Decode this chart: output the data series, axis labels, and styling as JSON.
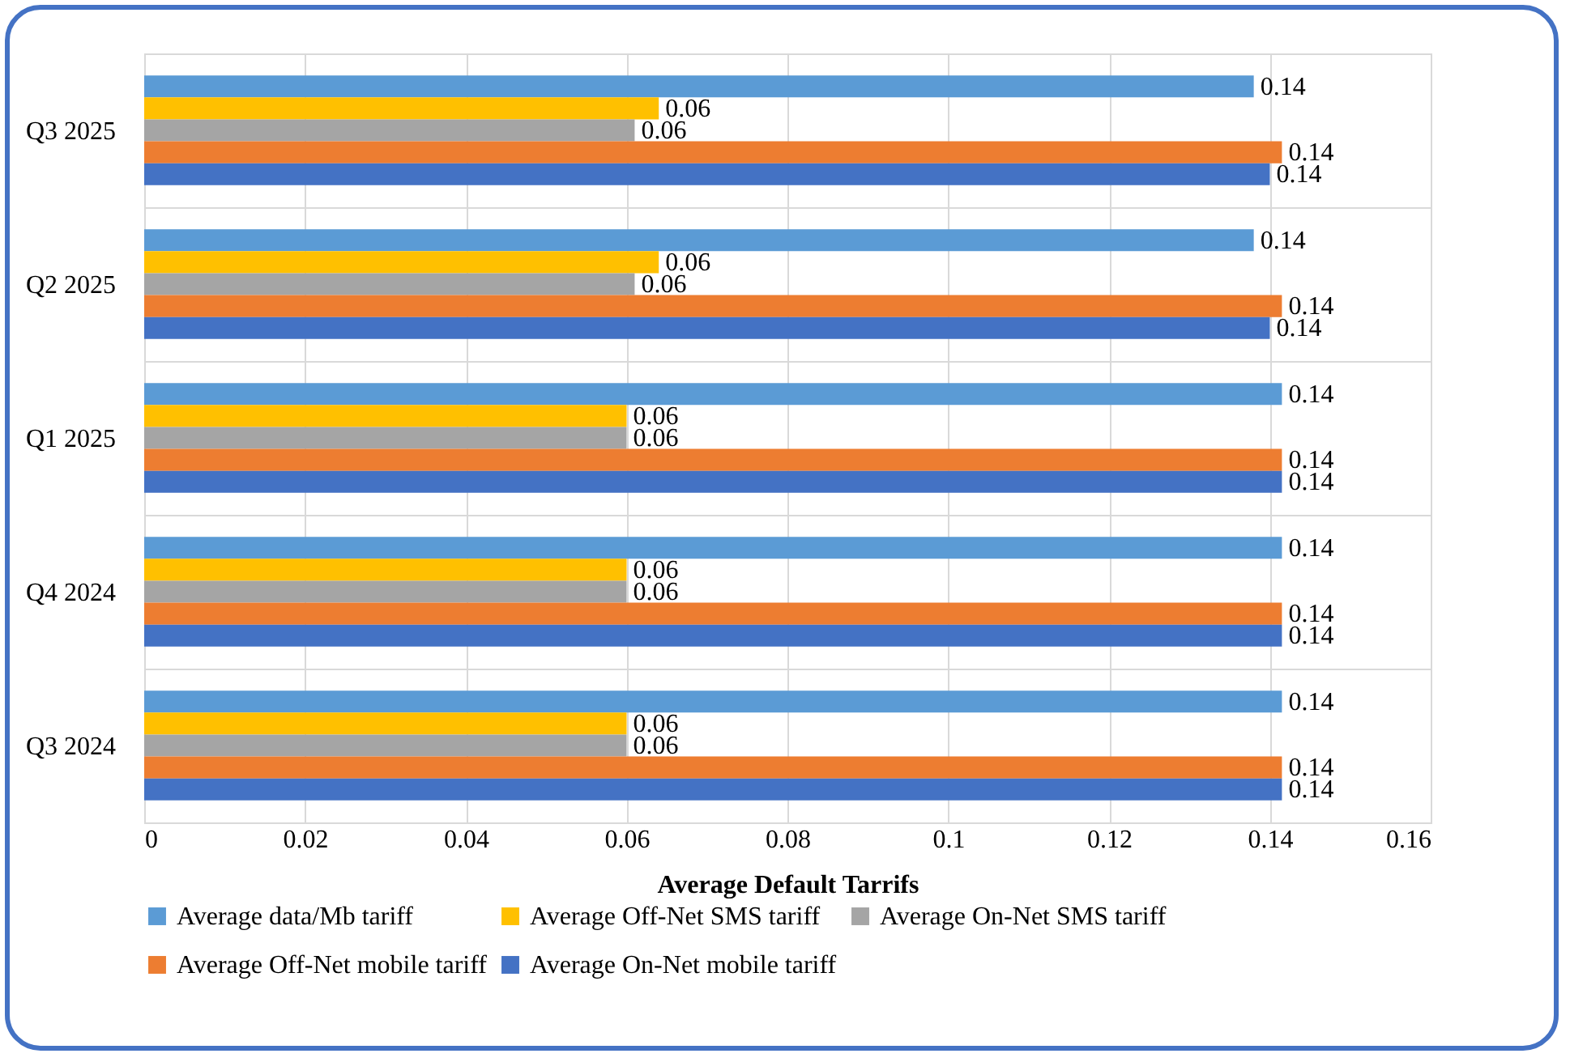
{
  "chart_data": {
    "type": "bar",
    "orientation": "horizontal",
    "xlabel": "Average Default Tarrifs",
    "categories": [
      "Q3 2025",
      "Q2 2025",
      "Q1 2025",
      "Q4 2024",
      "Q3 2024"
    ],
    "series": [
      {
        "name": "Average data/Mb tariff",
        "color": "#5b9bd5",
        "values": [
          0.138,
          0.138,
          0.1415,
          0.1415,
          0.1415
        ],
        "value_labels": [
          "0.14",
          "0.14",
          "0.14",
          "0.14",
          "0.14"
        ]
      },
      {
        "name": "Average Off-Net SMS tariff",
        "color": "#ffc000",
        "values": [
          0.064,
          0.064,
          0.06,
          0.06,
          0.06
        ],
        "value_labels": [
          "0.06",
          "0.06",
          "0.06",
          "0.06",
          "0.06"
        ]
      },
      {
        "name": "Average On-Net SMS tariff",
        "color": "#a5a5a5",
        "values": [
          0.061,
          0.061,
          0.06,
          0.06,
          0.06
        ],
        "value_labels": [
          "0.06",
          "0.06",
          "0.06",
          "0.06",
          "0.06"
        ]
      },
      {
        "name": "Average Off-Net mobile tariff",
        "color": "#ed7d31",
        "values": [
          0.1415,
          0.1415,
          0.1415,
          0.1415,
          0.1415
        ],
        "value_labels": [
          "0.14",
          "0.14",
          "0.14",
          "0.14",
          "0.14"
        ]
      },
      {
        "name": "Average On-Net mobile tariff",
        "color": "#4472c4",
        "values": [
          0.14,
          0.14,
          0.1415,
          0.1415,
          0.1415
        ],
        "value_labels": [
          "0.14",
          "0.14",
          "0.14",
          "0.14",
          "0.14"
        ]
      }
    ],
    "xlim": [
      0,
      0.16
    ],
    "xticks": [
      0,
      0.02,
      0.04,
      0.06,
      0.08,
      0.1,
      0.12,
      0.14,
      0.16
    ],
    "grid": true,
    "legend": "bottom"
  }
}
